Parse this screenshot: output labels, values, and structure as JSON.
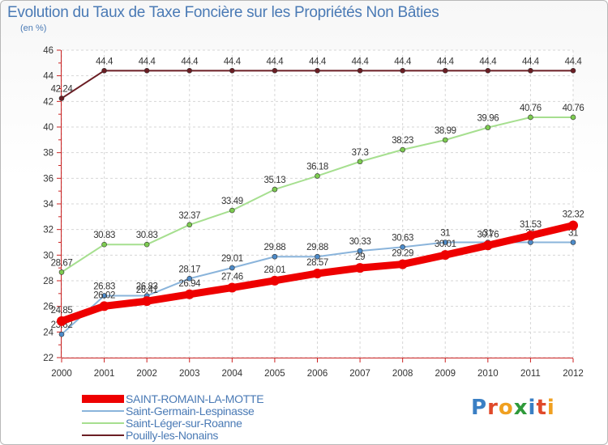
{
  "header": {
    "title": "Evolution du Taux de Taxe Foncière sur les Propriétés Non Bâties",
    "unit": "(en %)"
  },
  "brand": {
    "text": "Proxiti",
    "letter_colors": [
      "#3a7fc4",
      "#e0492a",
      "#f0a020",
      "#2f9a3a",
      "#3a7fc4",
      "#e0492a",
      "#f0a020"
    ]
  },
  "chart_data": {
    "type": "line",
    "title": "Evolution du Taux de Taxe Foncière sur les Propriétés Non Bâties",
    "ylabel": "(en %)",
    "xlabel": "",
    "x": [
      "2000",
      "2001",
      "2002",
      "2003",
      "2004",
      "2005",
      "2006",
      "2007",
      "2008",
      "2009",
      "2010",
      "2011",
      "2012"
    ],
    "ylim": [
      22,
      46
    ],
    "yticks": [
      "22",
      "24",
      "26",
      "28",
      "30",
      "32",
      "34",
      "36",
      "38",
      "40",
      "42",
      "44",
      "46"
    ],
    "grid": true,
    "legend_position": "bottom-left",
    "series": [
      {
        "name": "Pouilly-les-Nonains",
        "color": "#6b1e24",
        "marker": "#6b1e24",
        "values": [
          42.24,
          44.4,
          44.4,
          44.4,
          44.4,
          44.4,
          44.4,
          44.4,
          44.4,
          44.4,
          44.4,
          44.4,
          44.4
        ],
        "labels": [
          "42.24",
          "44.4",
          "44.4",
          "44.4",
          "44.4",
          "44.4",
          "44.4",
          "44.4",
          "44.4",
          "44.4",
          "44.4",
          "44.4",
          "44.4"
        ]
      },
      {
        "name": "Saint-Léger-sur-Roanne",
        "color": "#a6df8f",
        "marker": "#7dcc50",
        "values": [
          28.67,
          30.83,
          30.83,
          32.37,
          33.49,
          35.13,
          36.18,
          37.3,
          38.23,
          38.99,
          39.96,
          40.76,
          40.76
        ],
        "labels": [
          "28.67",
          "30.83",
          "30.83",
          "32.37",
          "33.49",
          "35.13",
          "36.18",
          "37.3",
          "38.23",
          "38.99",
          "39.96",
          "40.76",
          "40.76"
        ]
      },
      {
        "name": "Saint-Germain-Lespinasse",
        "color": "#8ab4db",
        "marker": "#4d8bc9",
        "values": [
          23.82,
          26.83,
          26.83,
          28.17,
          29.01,
          29.88,
          29.88,
          30.33,
          30.63,
          31,
          31,
          31,
          31
        ],
        "labels": [
          "23.82",
          "26.83",
          "26.83",
          "28.17",
          "29.01",
          "29.88",
          "29.88",
          "30.33",
          "30.63",
          "31",
          "31",
          "31",
          "31"
        ]
      },
      {
        "name": "SAINT-ROMAIN-LA-MOTTE",
        "color": "#ee0000",
        "marker": "#ee0000",
        "values": [
          24.85,
          26.02,
          26.41,
          26.94,
          27.46,
          28.01,
          28.57,
          29,
          29.29,
          30.01,
          30.76,
          31.53,
          32.32
        ],
        "labels": [
          "24.85",
          "26.02",
          "26.41",
          "26.94",
          "27.46",
          "28.01",
          "28.57",
          "29",
          "29.29",
          "30.01",
          "30.76",
          "31.53",
          "32.32"
        ]
      }
    ],
    "legend_order": [
      "SAINT-ROMAIN-LA-MOTTE",
      "Saint-Germain-Lespinasse",
      "Saint-Léger-sur-Roanne",
      "Pouilly-les-Nonains"
    ]
  }
}
